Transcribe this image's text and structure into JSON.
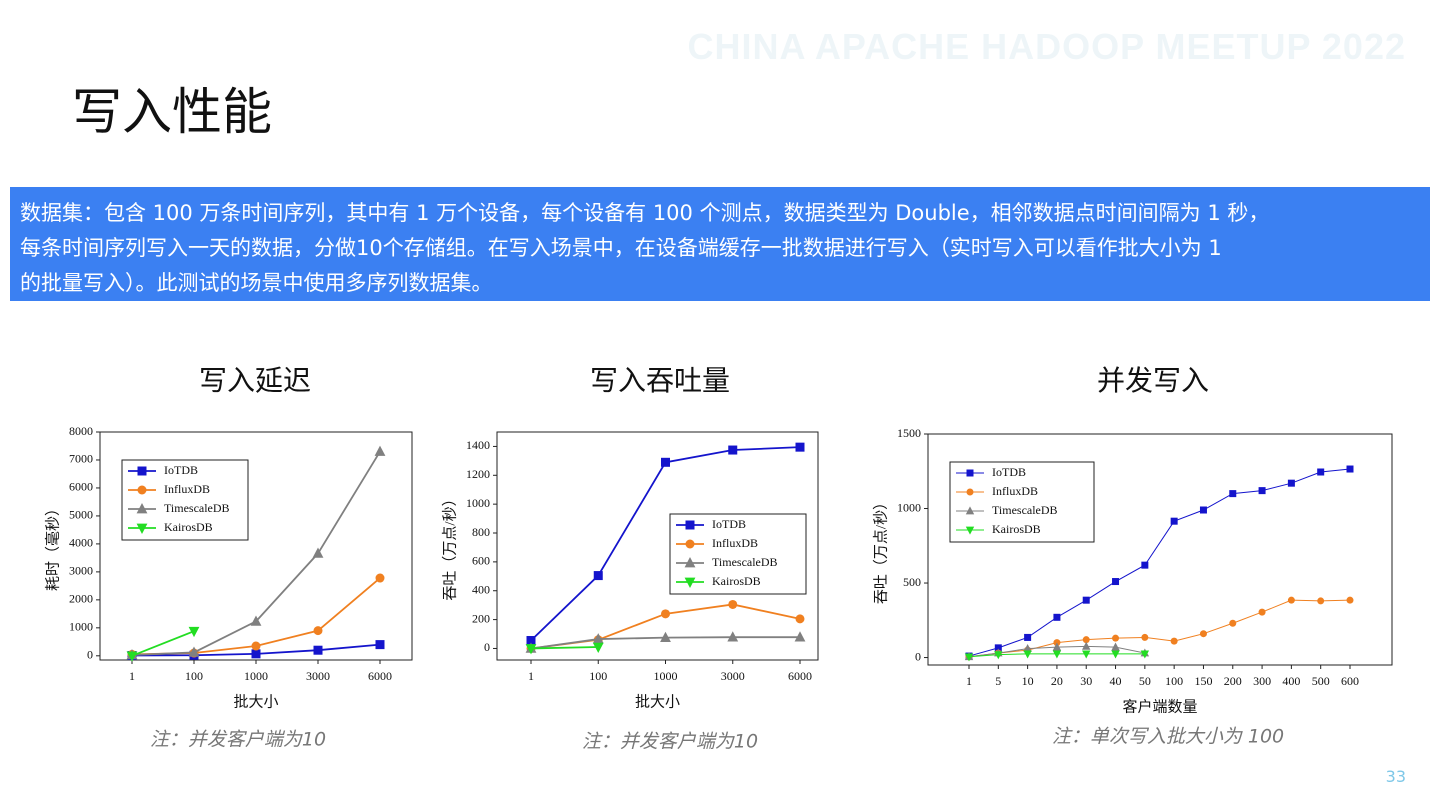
{
  "header": {
    "title": "写入性能",
    "watermark": "CHINA APACHE HADOOP MEETUP 2022"
  },
  "description": [
    "数据集：包含 100 万条时间序列，其中有 1 万个设备，每个设备有 100 个测点，数据类型为 Double，相邻数据点时间间隔为 1 秒，",
    "每条时间序列写入一天的数据，分做10个存储组。在写入场景中，在设备端缓存一批数据进行写入（实时写入可以看作批大小为 1",
    "的批量写入）。此测试的场景中使用多序列数据集。"
  ],
  "page_number": "33",
  "chart_data": [
    {
      "type": "line",
      "title": "写入延迟",
      "note": "注：并发客户端为10",
      "x_label": "批大小",
      "y_label": "耗时（毫秒）",
      "categories": [
        "1",
        "100",
        "1000",
        "3000",
        "6000"
      ],
      "ylim": [
        -150,
        8000
      ],
      "yticks": [
        0,
        1000,
        2000,
        3000,
        4000,
        5000,
        6000,
        7000,
        8000
      ],
      "legend": "upper left",
      "series": [
        {
          "name": "IoTDB",
          "color": "#1414cc",
          "marker": "square",
          "values": [
            10,
            20,
            70,
            200,
            400
          ]
        },
        {
          "name": "InfluxDB",
          "color": "#f08020",
          "marker": "circle",
          "values": [
            50,
            100,
            350,
            900,
            2780
          ]
        },
        {
          "name": "TimescaleDB",
          "color": "#808080",
          "marker": "triangle-up",
          "values": [
            30,
            120,
            1230,
            3660,
            7300
          ]
        },
        {
          "name": "KairosDB",
          "color": "#22dd22",
          "marker": "triangle-down",
          "values": [
            0,
            880,
            null,
            null,
            null
          ]
        }
      ]
    },
    {
      "type": "line",
      "title": "写入吞吐量",
      "note": "注：并发客户端为10",
      "x_label": "批大小",
      "y_label": "吞吐（万点/秒）",
      "categories": [
        "1",
        "100",
        "1000",
        "3000",
        "6000"
      ],
      "ylim": [
        -80,
        1500
      ],
      "yticks": [
        0,
        200,
        400,
        600,
        800,
        1000,
        1200,
        1400
      ],
      "legend": "center right",
      "series": [
        {
          "name": "IoTDB",
          "color": "#1414cc",
          "marker": "square",
          "values": [
            55,
            505,
            1290,
            1375,
            1395
          ]
        },
        {
          "name": "InfluxDB",
          "color": "#f08020",
          "marker": "circle",
          "values": [
            0,
            60,
            240,
            305,
            205
          ]
        },
        {
          "name": "TimescaleDB",
          "color": "#808080",
          "marker": "triangle-up",
          "values": [
            0,
            65,
            75,
            78,
            78
          ]
        },
        {
          "name": "KairosDB",
          "color": "#22dd22",
          "marker": "triangle-down",
          "values": [
            0,
            10,
            null,
            null,
            null
          ]
        }
      ]
    },
    {
      "type": "line",
      "title": "并发写入",
      "note": "注：单次写入批大小为 100",
      "x_label": "客户端数量",
      "y_label": "吞吐（万点/秒）",
      "categories": [
        "1",
        "5",
        "10",
        "20",
        "30",
        "40",
        "50",
        "100",
        "150",
        "200",
        "300",
        "400",
        "500",
        "600"
      ],
      "ylim": [
        -50,
        1500
      ],
      "yticks": [
        0,
        500,
        1000,
        1500
      ],
      "legend": "upper left",
      "series": [
        {
          "name": "IoTDB",
          "color": "#1414cc",
          "marker": "square",
          "values": [
            10,
            65,
            135,
            270,
            385,
            510,
            620,
            915,
            990,
            1100,
            1120,
            1170,
            1245,
            1265
          ]
        },
        {
          "name": "InfluxDB",
          "color": "#f08020",
          "marker": "circle",
          "values": [
            5,
            30,
            50,
            100,
            120,
            130,
            135,
            110,
            160,
            230,
            305,
            385,
            380,
            385
          ]
        },
        {
          "name": "TimescaleDB",
          "color": "#808080",
          "marker": "triangle-up",
          "values": [
            5,
            30,
            60,
            70,
            75,
            70,
            30,
            null,
            null,
            null,
            null,
            null,
            null,
            null
          ]
        },
        {
          "name": "KairosDB",
          "color": "#22dd22",
          "marker": "triangle-down",
          "values": [
            5,
            20,
            25,
            25,
            25,
            25,
            25,
            null,
            null,
            null,
            null,
            null,
            null,
            null
          ]
        }
      ]
    }
  ]
}
